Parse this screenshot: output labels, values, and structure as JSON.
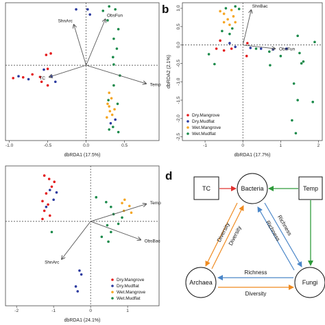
{
  "colors": {
    "Dry.Mangrove": "#e41a1c",
    "Dry.Mudflat": "#2b3a9f",
    "Wet.Mangrove": "#f5a623",
    "Wet.Mudflat": "#1a8a4a",
    "axis": "#444444",
    "arrow_red": "#e0302e",
    "arrow_green": "#2e9a3a",
    "arrow_orange": "#ef8a1f",
    "arrow_blue": "#4a86c8"
  },
  "chart_data": [
    {
      "type": "scatter",
      "panel": "a",
      "xlabel": "dbRDA1 (17.5%)",
      "ylabel": "",
      "xlim": [
        -1.05,
        0.95
      ],
      "ylim": [
        -2.05,
        1.7
      ],
      "xticks": [
        "-1.0",
        "-0.5",
        "0.0",
        "0.5"
      ],
      "xtick_values": [
        -1.0,
        -0.5,
        0.0,
        0.5
      ],
      "yticks": [],
      "ytick_values": [],
      "legend": [],
      "vectors": [
        {
          "label": "ShnArc",
          "x": -0.16,
          "y": 1.1
        },
        {
          "label": "ObsFun",
          "x": 0.25,
          "y": 1.25
        },
        {
          "label": "TC",
          "x": -0.48,
          "y": -0.32
        },
        {
          "label": "Temp",
          "x": 0.78,
          "y": -0.5
        }
      ],
      "series": [
        {
          "name": "Dry.Mangrove",
          "points": [
            [
              -0.95,
              -0.35
            ],
            [
              -0.82,
              -0.33
            ],
            [
              -0.7,
              -0.25
            ],
            [
              -0.6,
              -0.32
            ],
            [
              -0.58,
              -0.45
            ],
            [
              -0.5,
              -0.55
            ],
            [
              -0.52,
              0.28
            ],
            [
              -0.46,
              0.32
            ],
            [
              -0.5,
              -0.1
            ]
          ]
        },
        {
          "name": "Dry.Mudflat",
          "points": [
            [
              -0.13,
              1.52
            ],
            [
              0.02,
              1.52
            ],
            [
              0.05,
              1.38
            ],
            [
              -0.88,
              -0.3
            ],
            [
              -0.75,
              -0.38
            ],
            [
              -0.55,
              -0.12
            ],
            [
              -0.45,
              -0.3
            ],
            [
              -0.4,
              -0.45
            ],
            [
              0.38,
              -1.48
            ],
            [
              0.32,
              -1.58
            ]
          ]
        },
        {
          "name": "Wet.Mangrove",
          "points": [
            [
              0.3,
              -0.75
            ],
            [
              0.33,
              -0.9
            ],
            [
              0.28,
              -1.05
            ],
            [
              0.31,
              -1.25
            ],
            [
              0.37,
              -1.2
            ],
            [
              0.27,
              -1.42
            ],
            [
              0.34,
              -1.35
            ],
            [
              0.3,
              -1.12
            ]
          ]
        },
        {
          "name": "Wet.Mudflat",
          "points": [
            [
              0.22,
              1.48
            ],
            [
              0.3,
              1.6
            ],
            [
              0.38,
              1.52
            ],
            [
              0.28,
              1.22
            ],
            [
              0.42,
              0.98
            ],
            [
              0.36,
              0.72
            ],
            [
              0.4,
              0.45
            ],
            [
              0.35,
              0.22
            ],
            [
              0.36,
              0.02
            ],
            [
              0.44,
              -0.28
            ],
            [
              0.36,
              -0.55
            ],
            [
              0.29,
              -0.95
            ],
            [
              0.41,
              -1.05
            ],
            [
              0.35,
              -1.68
            ],
            [
              0.42,
              -1.82
            ],
            [
              0.3,
              -1.75
            ]
          ]
        }
      ]
    },
    {
      "type": "scatter",
      "panel": "b",
      "xlabel": "dbRDA1 (17.7%)",
      "ylabel": "dbRDA2 (2.1%)",
      "xlim": [
        -1.6,
        2.1
      ],
      "ylim": [
        -2.6,
        1.15
      ],
      "xticks": [
        "-1",
        "0",
        "1",
        "2"
      ],
      "xtick_values": [
        -1,
        0,
        1,
        2
      ],
      "yticks": [
        "1.0",
        "0.5",
        "0.0",
        "-0.5",
        "-1.0",
        "-1.5",
        "-2.0",
        "-2.5"
      ],
      "ytick_values": [
        1.0,
        0.5,
        0.0,
        -0.5,
        -1.0,
        -1.5,
        -2.0,
        -2.5
      ],
      "legend": [
        "Dry.Mangrove",
        "Dry.Mudflat",
        "Wet.Mangrove",
        "Wet.Mudflat"
      ],
      "legend_position": "bottom-left",
      "vectors": [
        {
          "label": "ShnBac",
          "x": 0.22,
          "y": 0.95
        },
        {
          "label": "ObsFun",
          "x": 0.85,
          "y": -0.1
        }
      ],
      "series": [
        {
          "name": "Dry.Mangrove",
          "points": [
            [
              -0.6,
              0.12
            ],
            [
              -0.5,
              -0.15
            ],
            [
              -0.3,
              -0.1
            ],
            [
              0.12,
              0.05
            ],
            [
              -0.7,
              -0.1
            ],
            [
              0.1,
              -0.3
            ]
          ]
        },
        {
          "name": "Dry.Mudflat",
          "points": [
            [
              -0.35,
              0.05
            ],
            [
              -0.2,
              -0.05
            ],
            [
              0.2,
              -0.08
            ],
            [
              0.48,
              -0.1
            ],
            [
              1.15,
              -0.1
            ],
            [
              0.8,
              -0.12
            ]
          ]
        },
        {
          "name": "Wet.Mangrove",
          "points": [
            [
              -0.6,
              0.92
            ],
            [
              -0.5,
              0.85
            ],
            [
              -0.3,
              0.95
            ],
            [
              -0.25,
              0.78
            ],
            [
              -0.4,
              0.7
            ],
            [
              -0.35,
              0.55
            ],
            [
              -0.2,
              0.62
            ],
            [
              -0.5,
              0.62
            ]
          ]
        },
        {
          "name": "Wet.Mudflat",
          "points": [
            [
              -0.45,
              1.0
            ],
            [
              -0.2,
              1.05
            ],
            [
              -0.1,
              0.98
            ],
            [
              -0.55,
              0.38
            ],
            [
              -0.35,
              0.3
            ],
            [
              -0.28,
              0.45
            ],
            [
              0.35,
              -0.1
            ],
            [
              0.7,
              -0.18
            ],
            [
              1.0,
              -0.3
            ],
            [
              0.72,
              -0.55
            ],
            [
              -0.9,
              -0.25
            ],
            [
              -0.75,
              -0.52
            ],
            [
              1.45,
              0.25
            ],
            [
              1.5,
              -0.22
            ],
            [
              1.6,
              -0.45
            ],
            [
              1.9,
              0.08
            ],
            [
              1.55,
              -0.5
            ],
            [
              1.35,
              -1.05
            ],
            [
              1.45,
              -1.5
            ],
            [
              1.85,
              -1.55
            ],
            [
              1.3,
              -2.05
            ],
            [
              1.4,
              -2.4
            ]
          ]
        }
      ]
    },
    {
      "type": "scatter",
      "panel": "c",
      "xlabel": "dbRDA1 (24.1%)",
      "ylabel": "",
      "xlim": [
        -2.3,
        1.85
      ],
      "ylim": [
        -1.75,
        1.15
      ],
      "xticks": [
        "-2",
        "-1",
        "0",
        "1"
      ],
      "xtick_values": [
        -2,
        -1,
        0,
        1
      ],
      "yticks": [],
      "ytick_values": [],
      "legend": [
        "Dry.Mangrove",
        "Dry.Mudflat",
        "Wet.Mangrove",
        "Wet.Mudflat"
      ],
      "legend_position": "bottom-right",
      "vectors": [
        {
          "label": "Temp",
          "x": 1.5,
          "y": 0.36
        },
        {
          "label": "ObsBac",
          "x": 1.35,
          "y": -0.38
        },
        {
          "label": "ShnArc",
          "x": -0.78,
          "y": -0.78
        }
      ],
      "series": [
        {
          "name": "Dry.Mangrove",
          "points": [
            [
              -1.25,
              0.95
            ],
            [
              -1.12,
              0.88
            ],
            [
              -0.98,
              0.82
            ],
            [
              -1.05,
              0.72
            ],
            [
              -1.2,
              0.58
            ],
            [
              -1.3,
              0.42
            ],
            [
              -1.15,
              0.35
            ],
            [
              -1.25,
              0.22
            ],
            [
              -1.1,
              0.12
            ],
            [
              -1.3,
              0.05
            ]
          ]
        },
        {
          "name": "Dry.Mudflat",
          "points": [
            [
              -1.1,
              0.65
            ],
            [
              -0.92,
              0.6
            ],
            [
              -1.0,
              0.45
            ],
            [
              -1.2,
              0.3
            ],
            [
              -0.3,
              -1.02
            ],
            [
              -0.25,
              -1.1
            ],
            [
              -0.4,
              -1.35
            ],
            [
              -0.35,
              -1.45
            ]
          ]
        },
        {
          "name": "Wet.Mangrove",
          "points": [
            [
              0.92,
              0.45
            ],
            [
              1.05,
              0.32
            ],
            [
              0.9,
              0.22
            ],
            [
              1.1,
              0.18
            ],
            [
              0.85,
              0.38
            ]
          ]
        },
        {
          "name": "Wet.Mudflat",
          "points": [
            [
              -1.05,
              -0.22
            ],
            [
              0.15,
              0.5
            ],
            [
              0.42,
              0.4
            ],
            [
              0.55,
              0.3
            ],
            [
              0.62,
              0.15
            ],
            [
              0.45,
              -0.08
            ],
            [
              0.75,
              -0.05
            ],
            [
              0.85,
              0.08
            ],
            [
              0.55,
              -0.22
            ],
            [
              0.48,
              -0.42
            ],
            [
              0.3,
              -0.32
            ]
          ]
        }
      ]
    }
  ],
  "panel_labels": {
    "b": "b",
    "d": "d"
  },
  "diagram": {
    "boxes": {
      "tc": "TC",
      "temp": "Temp"
    },
    "circles": {
      "bacteria": "Bacteria",
      "archaea": "Archaea",
      "fungi": "Fungi"
    },
    "edge_labels": {
      "bac_arc_1": "Diversity",
      "bac_arc_2": "Diversity",
      "bac_fun_1": "Richness",
      "bac_fun_2": "Richness",
      "arc_fun_top": "Richness",
      "arc_fun_bottom": "Diversity"
    }
  }
}
